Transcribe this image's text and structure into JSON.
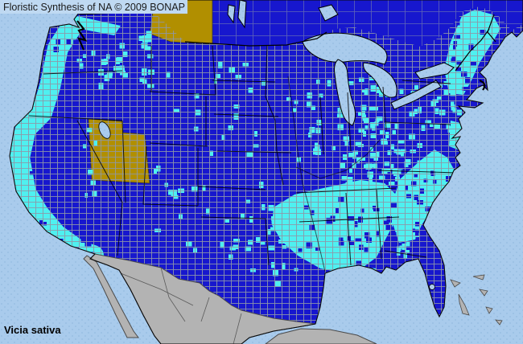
{
  "header": {
    "title": "Floristic Synthesis of NA © 2009 BONAP"
  },
  "map": {
    "species_label": "Vicia sativa"
  },
  "colors": {
    "title_bar_bg": "#BFD9F2",
    "title_text": "#1a1a1a",
    "water": "#A9CBEC",
    "water_dot": "#95BBE0",
    "state_present_blue": "#1717CE",
    "county_present_cyan": "#4FF0F0",
    "state_absent_gold": "#B18F00",
    "other_land_gray": "#B3B3B3",
    "other_land_border": "#4a4a4a",
    "county_line": "#8E97A8",
    "state_line": "#000000",
    "coast_line": "#0a0a0a",
    "label_text": "#000000"
  }
}
